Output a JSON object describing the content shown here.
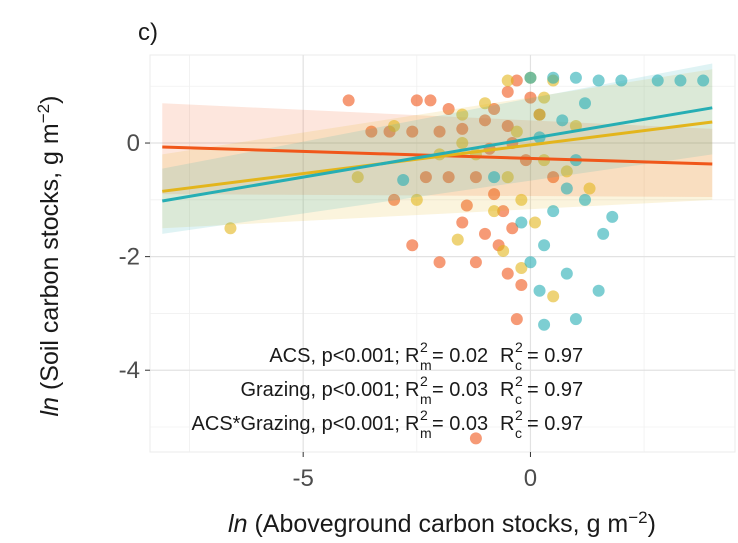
{
  "chart_data": {
    "type": "scatter",
    "panel_label": "c)",
    "x_label": [
      "ln",
      " (Aboveground carbon stocks, g m",
      "−2",
      ")"
    ],
    "y_label": [
      "ln",
      " (Soil carbon stocks, g m",
      "−2",
      ")"
    ],
    "xlim": [
      -8.37,
      4.5
    ],
    "ylim": [
      -5.44,
      1.55
    ],
    "xticks": [
      -5,
      0
    ],
    "yticks": [
      -4,
      -2,
      0
    ],
    "x_minor_ticks": [
      -7.5,
      -2.5,
      2.5
    ],
    "y_minor_ticks": [
      -5,
      -3,
      -1,
      1
    ],
    "grid": true,
    "series": [
      {
        "color": "#f0571a",
        "x": [
          -2.5,
          -2.2,
          -3.5,
          -3.1,
          -2.6,
          -2,
          -1.5,
          -1,
          -0.8,
          -0.5,
          -0.3,
          0,
          0.2,
          -0.5,
          -1.8,
          -2.3,
          -1.8,
          -1.2,
          -0.8,
          -0.6,
          -0.4,
          -0.7,
          -1,
          -1.2,
          -2,
          -0.5,
          -0.2,
          -0.3,
          -1.2,
          -3,
          -2.6,
          -1.4,
          -0.9,
          -0.1,
          0.5,
          -4,
          -1.5,
          -0.4
        ],
        "values": [
          0.75,
          0.75,
          0.2,
          0.2,
          0.2,
          0.2,
          0.25,
          0.4,
          0.6,
          0.9,
          1.1,
          0.8,
          0.5,
          0.3,
          0.6,
          -0.6,
          -0.6,
          -0.6,
          -0.9,
          -1.2,
          -1.5,
          -1.8,
          -1.6,
          -2.1,
          -2.1,
          -2.3,
          -2.5,
          -3.1,
          -5.2,
          -1.0,
          -1.8,
          -1.1,
          -0.1,
          -0.3,
          -0.6,
          0.75,
          -1.4,
          0.0
        ],
        "fit": {
          "x": [
            -8.1,
            4
          ],
          "y": [
            -0.07,
            -0.37
          ],
          "lower": [
            -0.9,
            -0.95
          ],
          "upper": [
            0.7,
            0.25
          ]
        }
      },
      {
        "color": "#e3b51c",
        "x": [
          -6.6,
          -3.8,
          -3,
          -2,
          -1.5,
          -1,
          -0.5,
          0,
          0.5,
          0.2,
          -0.3,
          0.3,
          -0.5,
          -0.2,
          0.1,
          -0.6,
          -0.2,
          0.5,
          -1.6,
          -2.5,
          1,
          0.8,
          -1.2,
          0.3,
          -0.8,
          1.3,
          -1.5
        ],
        "values": [
          -1.5,
          -0.6,
          0.3,
          -0.2,
          0.5,
          0.7,
          1.1,
          1.15,
          1.1,
          0.5,
          0.2,
          -0.3,
          -0.6,
          -1.0,
          -1.4,
          -1.9,
          -2.2,
          -2.7,
          -1.7,
          -1.0,
          0.3,
          -0.5,
          -0.2,
          0.8,
          -1.2,
          -0.8,
          0.0
        ],
        "fit": {
          "x": [
            -8.1,
            4
          ],
          "y": [
            -0.85,
            0.37
          ],
          "lower": [
            -1.5,
            -1.0
          ],
          "upper": [
            -0.2,
            1.3
          ]
        }
      },
      {
        "color": "#26aeb4",
        "x": [
          0,
          0.5,
          1,
          1.5,
          2,
          3.3,
          3.8,
          2.8,
          1.2,
          0.7,
          0.2,
          1,
          0.8,
          1.2,
          1.8,
          0.5,
          0.3,
          0,
          0.8,
          1.5,
          0.3,
          1,
          -0.8,
          -2.8,
          1.6,
          0.2,
          -0.2
        ],
        "values": [
          1.15,
          1.15,
          1.15,
          1.1,
          1.1,
          1.1,
          1.1,
          1.1,
          0.7,
          0.4,
          0.1,
          -0.3,
          -0.8,
          -1.0,
          -1.3,
          -1.2,
          -1.8,
          -2.1,
          -2.3,
          -2.6,
          -3.2,
          -3.1,
          -0.6,
          -0.65,
          -1.6,
          -2.6,
          -1.4
        ],
        "fit": {
          "x": [
            -8.1,
            4
          ],
          "y": [
            -1.02,
            0.62
          ],
          "lower": [
            -1.6,
            -0.2
          ],
          "upper": [
            -0.45,
            1.4
          ]
        }
      }
    ],
    "annotation_symbols": {
      "r": "R",
      "sup": "2",
      "m": "m",
      "c": "c"
    },
    "annotations": [
      {
        "text": "ACS, p<0.001;",
        "rm": "= 0.02",
        "rc": "= 0.97"
      },
      {
        "text": "Grazing, p<0.001;",
        "rm": "= 0.03",
        "rc": "= 0.97"
      },
      {
        "text": "ACS*Grazing, p<0.001;",
        "rm": "= 0.03",
        "rc": "= 0.97"
      }
    ]
  }
}
